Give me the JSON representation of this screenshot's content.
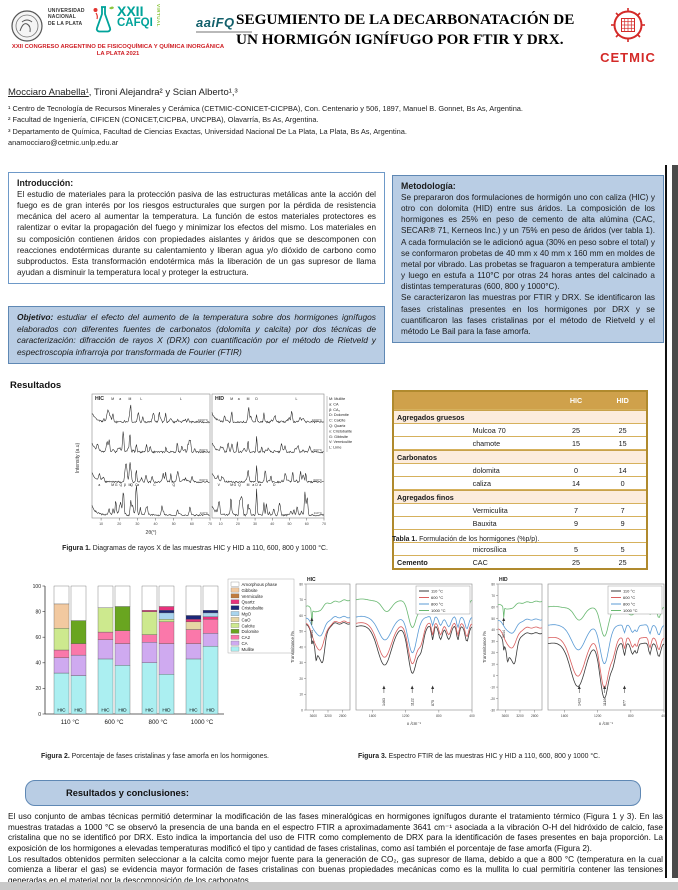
{
  "header": {
    "title": "SEGUMIENTO DE LA DECARBONATACIÓN DE UN HORMIGÓN IGNÍFUGO POR FTIR Y DRX.",
    "congress": "XXII CONGRESO ARGENTINO DE FISICOQUÍMICA Y QUÍMICA INORGÁNICA",
    "congress_place": "LA PLATA 2021",
    "unlp": {
      "l1": "UNIVERSIDAD",
      "l2": "NACIONAL",
      "l3": "DE LA PLATA"
    },
    "cafqi": {
      "num": "XXII",
      "name": "CAFQI",
      "vertical": "VIRTUAL"
    },
    "aaifq": "aaiFQ",
    "cetmic": "CETMIC",
    "brand_red": "#d42a28",
    "brand_teal": "#00a39a"
  },
  "authors": {
    "first": "Mocciaro Anabella¹",
    "rest": ", Tironi Alejandra² y Scian Alberto¹,³"
  },
  "affiliations": [
    "¹ Centro de Tecnología de Recursos Minerales y Cerámica (CETMIC-CONICET-CICPBA), Con. Centenario y 506, 1897, Manuel B. Gonnet, Bs As, Argentina.",
    "² Facultad de Ingeniería, CIFICEN (CONICET,CICPBA, UNCPBA), Olavarría, Bs As, Argentina.",
    "³ Departamento de Química, Facultad de Ciencias Exactas, Universidad Nacional De La Plata, La Plata, Bs As, Argentina."
  ],
  "email": "anamocciaro@cetmic.unlp.edu.ar",
  "introduccion": {
    "heading": "Introducción:",
    "body": "El estudio de materiales para la protección pasiva de las estructuras metálicas ante la acción del fuego es de gran interés por los riesgos estructurales que surgen por la pérdida de resistencia mecánica del acero al aumentar la temperatura. La función de estos materiales protectores es ralentizar o evitar la propagación del fuego y minimizar los efectos del mismo. Los materiales en su composición contienen áridos con propiedades aislantes y áridos que se descomponen con reacciones endotérmicas durante su calentamiento y liberan agua y/o dióxido de carbono como subproductos. Esta transformación endotérmica más la liberación de un gas supresor de llama ayudan a disminuir la temperatura local y proteger la estructura."
  },
  "objetivo": {
    "heading": "Objetivo:",
    "body": " estudiar el efecto del aumento de la temperatura sobre dos hormigones ignífugos elaborados con diferentes fuentes de carbonatos (dolomita y calcita) por dos técnicas de caracterización: difracción de rayos X (DRX) con cuantificación por el método de Rietveld y espectroscopia infrarroja por transformada de Fourier (FTIR)"
  },
  "metodologia": {
    "heading": "Metodología:",
    "p1": "Se prepararon dos formulaciones de hormigón uno con caliza (HIC) y otro con dolomita (HID) entre sus áridos. La composición de los hormigones es 25% en peso de cemento de alta alúmina (CAC, SECAR® 71, Kerneos Inc.) y un 75% en peso de áridos (ver tabla 1). A cada formulación se le adicionó agua (30% en peso sobre el total) y se conformaron probetas de 40 mm x 40 mm x 160 mm en moldes de metal por vibrado. Las probetas se fraguaron a temperatura ambiente y luego en estufa a 110°C por otras 24 horas antes del calcinado a distintas temperaturas (600, 800 y 1000°C).",
    "p2": "Se caracterizaron las muestras por FTIR y DRX. Se identificaron las fases cristalinas presentes en los hormigones por DRX y se cuantificaron las fases cristalinas por el método de Rietveld y el método Le Bail para la fase amorfa."
  },
  "resultados_label": "Resultados",
  "figura1": {
    "caption_label": "Figura 1.",
    "caption_text": " Diagramas de rayos X  de las muestras HIC y HID a 110, 600, 800 y 1000 °C."
  },
  "tabla1": {
    "caption_label": "Tabla 1.",
    "caption_text": " Formulación de los hormigones (%p/p).",
    "col_hic": "HIC",
    "col_hid": "HID",
    "rows": [
      {
        "type": "section",
        "label": "Agregados gruesos"
      },
      {
        "type": "data",
        "group": "",
        "material": "Mulcoa 70",
        "hic": "25",
        "hid": "25"
      },
      {
        "type": "data",
        "group": "",
        "material": "chamote",
        "hic": "15",
        "hid": "15"
      },
      {
        "type": "section",
        "label": "Carbonatos"
      },
      {
        "type": "data",
        "group": "",
        "material": "dolomita",
        "hic": "0",
        "hid": "14"
      },
      {
        "type": "data",
        "group": "",
        "material": "caliza",
        "hic": "14",
        "hid": "0"
      },
      {
        "type": "section",
        "label": "Agregados finos"
      },
      {
        "type": "data",
        "group": "",
        "material": "Vermiculita",
        "hic": "7",
        "hid": "7"
      },
      {
        "type": "data",
        "group": "",
        "material": "Bauxita",
        "hic": "9",
        "hid": "9"
      },
      {
        "type": "data",
        "group": "",
        "material": "",
        "hic": "",
        "hid": ""
      },
      {
        "type": "data",
        "group": "",
        "material": "microsílica",
        "hic": "5",
        "hid": "5"
      },
      {
        "type": "data",
        "group": "Cemento",
        "material": "CAC",
        "hic": "25",
        "hid": "25"
      }
    ]
  },
  "figura2": {
    "caption_label": "Figura 2.",
    "caption_text": " Porcentaje de fases cristalinas y fase amorfa en los hormigones."
  },
  "figura3": {
    "caption_label": "Figura 3.",
    "caption_text": " Espectro FTIR de las muestras HIC y HID a 110, 600, 800 y 1000 °C."
  },
  "conclusiones": {
    "heading": "Resultados y conclusiones:",
    "p1": "El uso conjunto de ambas técnicas permitió determinar la modificación de las fases mineralógicas en hormigones ignífugos durante el tratamiento térmico (Figura 1 y 3). En las muestras tratadas a 1000 °C se observó la presencia de una banda en el espectro FTIR a aproximadamente 3641 cm⁻¹ asociada a la vibración O-H del hidróxido de calcio, fase cristalina que no se identificó por DRX. Esto indica la importancia del uso de FITR como complemento de DRX para la identificación de fases presentes en baja proporción. La exposición de los hormigones a elevadas temperaturas modificó el tipo y cantidad de fases cristalinas, como así también el porcentaje de fase amorfa (Figura 2).",
    "p2": "Los resultados obtenidos permiten seleccionar a la calcita como mejor fuente para la generación de CO₂, gas supresor de llama, debido a que a 800 °C (temperatura en la cual comienza a liberar el gas) se evidencia mayor formación de fases cristalinas con buenas propiedades mecánicas como es la mullita lo cual permitiría contener las tensiones generadas en el material por la descomposición de los carbonatos."
  },
  "chart_data": [
    {
      "id": "figura1",
      "type": "line",
      "subtype": "xrd",
      "panels": [
        "HIC",
        "HID"
      ],
      "temperatures": [
        "110°C",
        "600°C",
        "800°C",
        "1000°C"
      ],
      "xlabel": "2θ(°)",
      "ylabel": "Intensity (a.u)",
      "xlim": [
        5,
        70
      ],
      "legend": [
        "M: Mullite",
        "a: CA",
        "β: CA₂",
        "D: Dolomite",
        "C: Calcite",
        "Q: Quartz",
        "x: Cristobalite",
        "G: Gibbsite",
        "V: Vermiculite",
        "L: Lime"
      ],
      "peak_letters": {
        "HIC": {
          "bottom": [
            [
              "a",
              9
            ],
            [
              "M",
              16.4
            ],
            [
              "G",
              18.3
            ],
            [
              "Q",
              20.9
            ],
            [
              "β",
              23.1
            ],
            [
              "M",
              25.9
            ],
            [
              "Q",
              26.8
            ],
            [
              "C",
              29.4
            ],
            [
              "a",
              30.4
            ],
            [
              "C",
              39.4
            ],
            [
              "Q",
              50.1
            ]
          ],
          "top": [
            [
              "M",
              16.4
            ],
            [
              "a",
              20.5
            ],
            [
              "M",
              25.9
            ],
            [
              "L",
              32.2
            ],
            [
              "L",
              54
            ]
          ]
        },
        "HID": {
          "bottom": [
            [
              "V",
              8.9
            ],
            [
              "M",
              16.4
            ],
            [
              "G",
              18.3
            ],
            [
              "Q",
              20.9
            ],
            [
              "M",
              25.9
            ],
            [
              "a",
              29
            ],
            [
              "D",
              30.9
            ],
            [
              "a",
              33
            ],
            [
              "D",
              41.1
            ]
          ],
          "top": [
            [
              "M",
              16.4
            ],
            [
              "a",
              20.5
            ],
            [
              "M",
              25.9
            ],
            [
              "D",
              30.9
            ],
            [
              "L",
              54
            ]
          ]
        }
      }
    },
    {
      "id": "figura2",
      "type": "bar",
      "subtype": "stacked_percent",
      "ylim": [
        0,
        100
      ],
      "yticks": [
        0,
        20,
        40,
        60,
        80,
        100
      ],
      "groups": [
        "110 °C",
        "600 °C",
        "800 °C",
        "1000 °C"
      ],
      "bar_labels": [
        "HIC",
        "HID"
      ],
      "legend": [
        [
          "Amorphous phase",
          "#ffffff"
        ],
        [
          "Gibbsite",
          "#f2c9a0"
        ],
        [
          "Vermiculite",
          "#bf7b3f"
        ],
        [
          "Quartz",
          "#e8327c"
        ],
        [
          "Cristobalite",
          "#1c2878"
        ],
        [
          "MgO",
          "#a9d4ee"
        ],
        [
          "CaO",
          "#e6d5a4"
        ],
        [
          "Calcite",
          "#cde98e"
        ],
        [
          "Dolomite",
          "#69a520"
        ],
        [
          "CA2",
          "#fa78aa"
        ],
        [
          "CA",
          "#cfaaf0"
        ],
        [
          "Mullite",
          "#abeff1"
        ]
      ],
      "bars": [
        {
          "group": "110 °C",
          "label": "HIC",
          "segments": [
            [
              "Mullite",
              32
            ],
            [
              "CA",
              12
            ],
            [
              "CA2",
              6
            ],
            [
              "Calcite",
              17
            ],
            [
              "Gibbsite",
              19
            ],
            [
              "Amorphous phase",
              14
            ]
          ]
        },
        {
          "group": "110 °C",
          "label": "HID",
          "segments": [
            [
              "Mullite",
              30
            ],
            [
              "CA",
              16
            ],
            [
              "CA2",
              9
            ],
            [
              "Dolomite",
              18
            ],
            [
              "Amorphous phase",
              27
            ]
          ]
        },
        {
          "group": "600 °C",
          "label": "HIC",
          "segments": [
            [
              "Mullite",
              43
            ],
            [
              "CA",
              15
            ],
            [
              "CA2",
              6
            ],
            [
              "Calcite",
              19
            ],
            [
              "Amorphous phase",
              17
            ]
          ]
        },
        {
          "group": "600 °C",
          "label": "HID",
          "segments": [
            [
              "Mullite",
              38
            ],
            [
              "CA",
              17
            ],
            [
              "CA2",
              10
            ],
            [
              "Dolomite",
              19
            ],
            [
              "Amorphous phase",
              16
            ]
          ]
        },
        {
          "group": "800 °C",
          "label": "HIC",
          "segments": [
            [
              "Mullite",
              40
            ],
            [
              "CA",
              16
            ],
            [
              "CA2",
              6
            ],
            [
              "Calcite",
              18
            ],
            [
              "Quartz",
              1
            ],
            [
              "Amorphous phase",
              19
            ]
          ]
        },
        {
          "group": "800 °C",
          "label": "HID",
          "segments": [
            [
              "Mullite",
              31
            ],
            [
              "CA",
              24
            ],
            [
              "CA2",
              17
            ],
            [
              "Calcite",
              2
            ],
            [
              "MgO",
              5
            ],
            [
              "Cristobalite",
              2
            ],
            [
              "Quartz",
              3
            ],
            [
              "Amorphous phase",
              16
            ]
          ]
        },
        {
          "group": "1000 °C",
          "label": "HIC",
          "segments": [
            [
              "Mullite",
              43
            ],
            [
              "CA",
              12
            ],
            [
              "CA2",
              11
            ],
            [
              "CaO",
              6
            ],
            [
              "Quartz",
              2
            ],
            [
              "Cristobalite",
              3
            ],
            [
              "Amorphous phase",
              23
            ]
          ]
        },
        {
          "group": "1000 °C",
          "label": "HID",
          "segments": [
            [
              "Mullite",
              53
            ],
            [
              "CA",
              10
            ],
            [
              "CA2",
              11
            ],
            [
              "Quartz",
              2
            ],
            [
              "MgO",
              3
            ],
            [
              "Cristobalite",
              2
            ],
            [
              "Amorphous phase",
              19
            ]
          ]
        }
      ]
    },
    {
      "id": "figura3",
      "type": "line",
      "subtype": "ftir",
      "panels": [
        "HIC",
        "HID"
      ],
      "series": [
        {
          "name": "110 °C",
          "color": "#3a3a3a"
        },
        {
          "name": "600 °C",
          "color": "#d95f5f"
        },
        {
          "name": "800 °C",
          "color": "#5b9bd5"
        },
        {
          "name": "1000 °C",
          "color": "#69b871"
        }
      ],
      "xlabel": "υ /cm⁻¹",
      "ylabel": "Transmitance /%",
      "x_ranges": [
        [
          3800,
          2600
        ],
        [
          1800,
          400
        ]
      ],
      "ylim": {
        "HIC": [
          0,
          80
        ],
        "HID": [
          -30,
          80
        ]
      },
      "band_annotations": {
        "HIC": [
          "3641",
          "1463",
          "1122",
          "875"
        ],
        "HID": [
          "3644",
          "1423",
          "1116",
          "877"
        ]
      }
    }
  ]
}
